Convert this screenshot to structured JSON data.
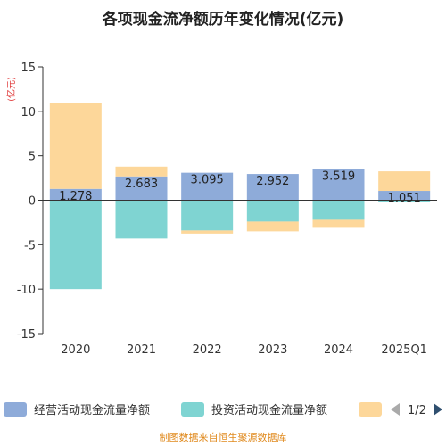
{
  "chart_data": {
    "type": "bar",
    "stacked": true,
    "title": "各项现金流净额历年变化情况(亿元)",
    "unit_label": "(亿元)",
    "categories": [
      "2020",
      "2021",
      "2022",
      "2023",
      "2024",
      "2025Q1"
    ],
    "ylim": [
      -15,
      15
    ],
    "yticks": [
      15,
      10,
      5,
      0,
      -5,
      -10,
      -15
    ],
    "series": [
      {
        "name": "经营活动现金流量净额",
        "color": "#8eabd9",
        "values": [
          1.278,
          2.683,
          3.095,
          2.952,
          3.519,
          1.051
        ]
      },
      {
        "name": "投资活动现金流量净额",
        "color": "#7fd4d2",
        "values": [
          -10.0,
          -4.3,
          -3.4,
          -2.4,
          -2.2,
          -0.2
        ]
      },
      {
        "name": "",
        "color": "#fdd79a",
        "values": [
          9.7,
          1.1,
          -0.35,
          -1.1,
          -0.9,
          2.2
        ]
      }
    ],
    "data_labels": [
      "1.278",
      "2.683",
      "3.095",
      "2.952",
      "3.519",
      "1.051"
    ],
    "grid": false,
    "legend_position": "bottom"
  },
  "legend": {
    "page_indicator": "1/2",
    "prev_icon": "triangle-left-icon",
    "next_icon": "triangle-right-icon"
  },
  "source": "制图数据来自恒生聚源数据库"
}
